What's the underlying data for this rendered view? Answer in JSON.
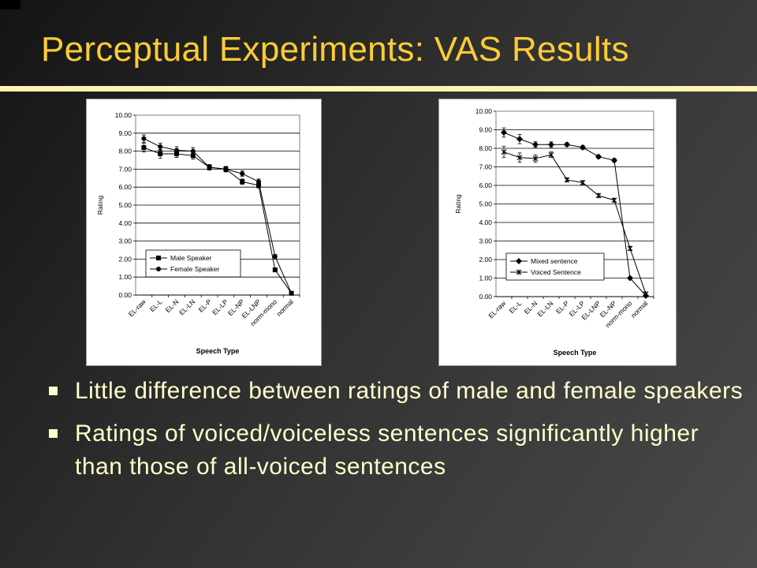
{
  "title": "Perceptual Experiments: VAS Results",
  "bullets": [
    "Little difference between ratings of male and female speakers",
    "Ratings of voiced/voiceless sentences significantly higher than those of all-voiced sentences"
  ],
  "chart_data": [
    {
      "type": "line",
      "title": "",
      "xlabel": "Speech Type",
      "ylabel": "Rating",
      "ylim": [
        0,
        10
      ],
      "ytick_step": 1,
      "ytick_labels": [
        "0.00",
        "1.00",
        "2.00",
        "3.00",
        "4.00",
        "5.00",
        "6.00",
        "7.00",
        "8.00",
        "9.00",
        "10.00"
      ],
      "grid": true,
      "legend_position": "lower-left",
      "categories": [
        "EL-raw",
        "EL-L",
        "EL-N",
        "EL-LN",
        "EL-P",
        "EL-LP",
        "EL-NP",
        "EL-LNP",
        "norm-mono",
        "normal"
      ],
      "series": [
        {
          "name": "Male Speaker",
          "marker": "square",
          "values": [
            8.2,
            7.85,
            7.85,
            7.75,
            7.1,
            7.0,
            6.3,
            6.1,
            1.4,
            0.1
          ],
          "errors": [
            0.25,
            0.25,
            0.2,
            0.2,
            0.15,
            0.15,
            0.15,
            0.15,
            0.1,
            0.05
          ]
        },
        {
          "name": "Female Speaker",
          "marker": "circle",
          "values": [
            8.7,
            8.25,
            8.05,
            8.0,
            7.1,
            7.0,
            6.75,
            6.3,
            2.15,
            0.1
          ],
          "errors": [
            0.2,
            0.2,
            0.2,
            0.2,
            0.15,
            0.15,
            0.15,
            0.15,
            0.1,
            0.05
          ]
        }
      ]
    },
    {
      "type": "line",
      "title": "",
      "xlabel": "Speech Type",
      "ylabel": "Rating",
      "ylim": [
        0,
        10
      ],
      "ytick_step": 1,
      "ytick_labels": [
        "0.00",
        "1.00",
        "2.00",
        "3.00",
        "4.00",
        "5.00",
        "6.00",
        "7.00",
        "8.00",
        "9.00",
        "10.00"
      ],
      "grid": true,
      "legend_position": "lower-left",
      "categories": [
        "EL-raw",
        "EL-L",
        "EL-N",
        "EL-LN",
        "EL-P",
        "EL-LP",
        "EL-LNP",
        "EL-NP",
        "norm-mono",
        "normal"
      ],
      "series": [
        {
          "name": "Mixed sentence",
          "marker": "diamond",
          "values": [
            8.85,
            8.5,
            8.2,
            8.2,
            8.2,
            8.05,
            7.55,
            7.35,
            1.0,
            0.05
          ],
          "errors": [
            0.25,
            0.25,
            0.15,
            0.15,
            0.1,
            0.1,
            0.1,
            0.1,
            0.05,
            0.05
          ]
        },
        {
          "name": "Voiced Sentence",
          "marker": "star",
          "values": [
            7.8,
            7.5,
            7.45,
            7.65,
            6.3,
            6.15,
            5.45,
            5.2,
            2.6,
            0.15
          ],
          "errors": [
            0.3,
            0.25,
            0.2,
            0.15,
            0.1,
            0.1,
            0.1,
            0.1,
            0.1,
            0.05
          ]
        }
      ]
    }
  ]
}
